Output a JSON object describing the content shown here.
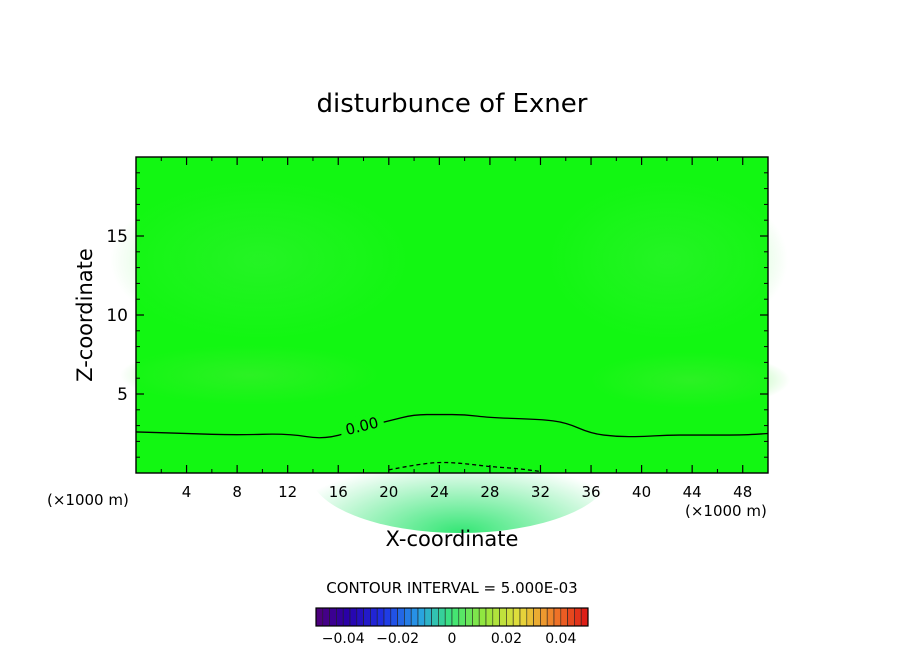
{
  "chart_data": {
    "type": "heatmap",
    "title": "disturbunce of Exner",
    "xlabel": "X-coordinate",
    "ylabel": "Z-coordinate",
    "x_unit": "(×1000 m)",
    "xlim": [
      0,
      50
    ],
    "ylim": [
      0,
      20
    ],
    "x_ticks": [
      "4",
      "8",
      "12",
      "16",
      "20",
      "24",
      "28",
      "32",
      "36",
      "40",
      "44",
      "48"
    ],
    "y_ticks": [
      "5",
      "10",
      "15"
    ],
    "contour_interval_text": "CONTOUR INTERVAL = 5.000E-03",
    "contours": [
      {
        "level_label": "0.00",
        "style": "solid",
        "points": [
          [
            0,
            2.6
          ],
          [
            4,
            2.5
          ],
          [
            8,
            2.4
          ],
          [
            12,
            2.5
          ],
          [
            15,
            2.1
          ],
          [
            18,
            2.9
          ],
          [
            20,
            3.3
          ],
          [
            22,
            3.7
          ],
          [
            24,
            3.7
          ],
          [
            26,
            3.7
          ],
          [
            28,
            3.5
          ],
          [
            32,
            3.4
          ],
          [
            34,
            3.2
          ],
          [
            36,
            2.5
          ],
          [
            38,
            2.3
          ],
          [
            40,
            2.3
          ],
          [
            42,
            2.4
          ],
          [
            44,
            2.4
          ],
          [
            48,
            2.4
          ],
          [
            50,
            2.5
          ]
        ]
      },
      {
        "level_label": "",
        "style": "dashed",
        "points": [
          [
            20,
            0.2
          ],
          [
            22,
            0.5
          ],
          [
            24,
            0.7
          ],
          [
            26,
            0.6
          ],
          [
            28,
            0.4
          ],
          [
            30,
            0.3
          ],
          [
            32,
            0.1
          ]
        ]
      }
    ],
    "colorbar": {
      "min": -0.05,
      "max": 0.05,
      "tick_values": [
        -0.04,
        -0.02,
        0,
        0.02,
        0.04
      ],
      "tick_labels": [
        "−0.04",
        "−0.02",
        "0",
        "0.02",
        "0.04"
      ]
    },
    "field_color": "#12f712",
    "colors": {
      "background": "#ffffff",
      "field": "#12f712",
      "field_lighter": "#2ef22e",
      "field_darker": "#1aeb4a",
      "axis": "#000000"
    }
  }
}
